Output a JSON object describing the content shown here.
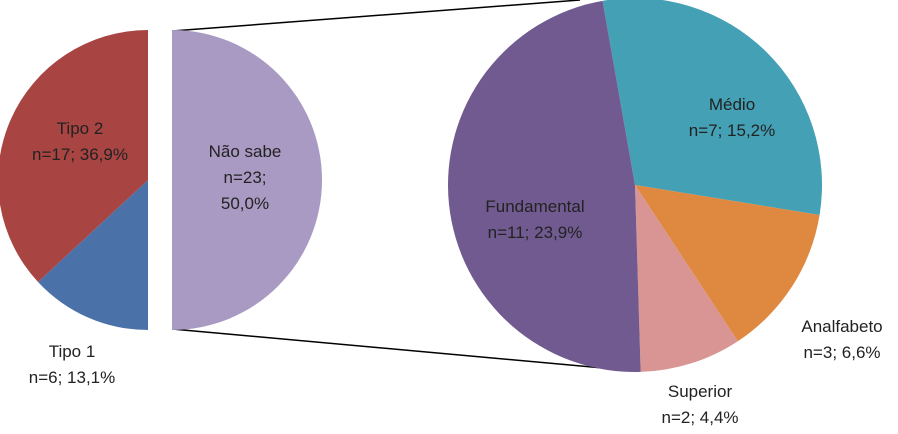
{
  "chart_data": {
    "type": "pie-of-pie",
    "primary": {
      "categories": [
        "Não sabe",
        "Tipo 1",
        "Tipo 2"
      ],
      "values": [
        50.0,
        13.1,
        36.9
      ],
      "value_labels": [
        "n=23; 50,0%",
        "n=6; 13,1%",
        "n=17; 36,9%"
      ],
      "colors": [
        "#a99ac3",
        "#4a72a8",
        "#a84442"
      ],
      "expanded": "Não sabe"
    },
    "secondary": {
      "categories": [
        "Médio",
        "Analfabeto",
        "Superior",
        "Fundamental"
      ],
      "values": [
        15.2,
        6.6,
        4.4,
        23.9
      ],
      "value_labels": [
        "n=7; 15,2%",
        "n=3; 6,6%",
        "n=2; 4,4%",
        "n=11; 23,9%"
      ],
      "colors": [
        "#44a0b4",
        "#df8840",
        "#d99594",
        "#715a8f"
      ]
    }
  }
}
